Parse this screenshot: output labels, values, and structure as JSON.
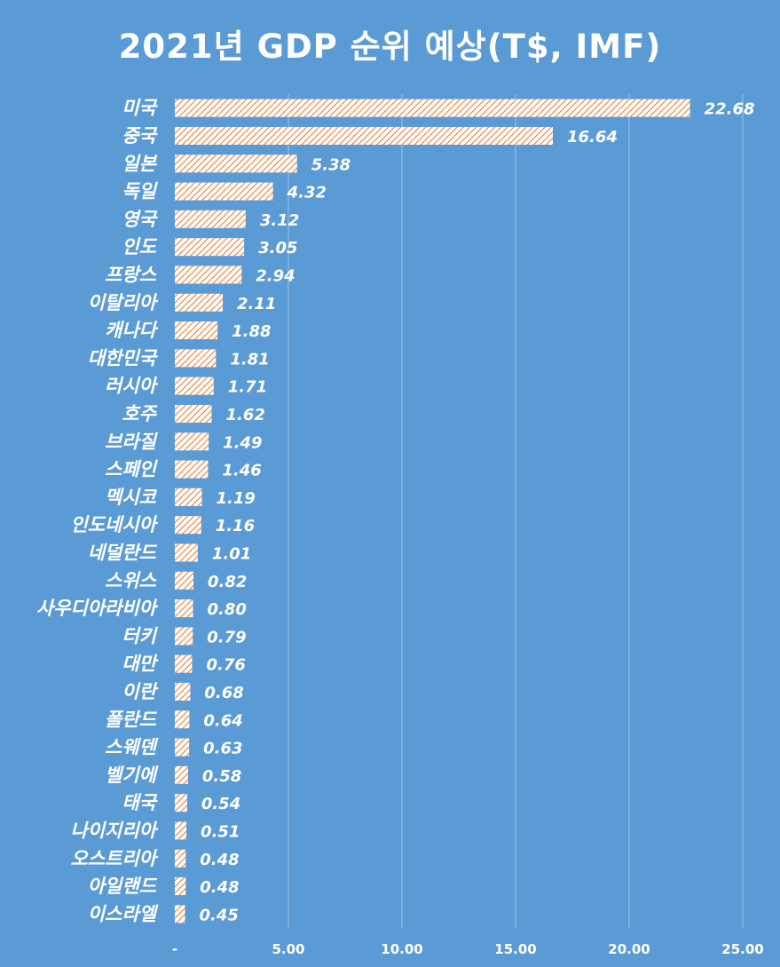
{
  "chart_data": {
    "type": "bar",
    "orientation": "horizontal",
    "title": "2021년 GDP 순위 예상(T$, IMF)",
    "categories": [
      "미국",
      "중국",
      "일본",
      "독일",
      "영국",
      "인도",
      "프랑스",
      "이탈리아",
      "캐나다",
      "대한민국",
      "러시아",
      "호주",
      "브라질",
      "스페인",
      "멕시코",
      "인도네시아",
      "네덜란드",
      "스위스",
      "사우디아라비아",
      "터키",
      "대만",
      "이란",
      "폴란드",
      "스웨덴",
      "벨기에",
      "태국",
      "나이지리아",
      "오스트리아",
      "아일랜드",
      "이스라엘"
    ],
    "values": [
      22.68,
      16.64,
      5.38,
      4.32,
      3.12,
      3.05,
      2.94,
      2.11,
      1.88,
      1.81,
      1.71,
      1.62,
      1.49,
      1.46,
      1.19,
      1.16,
      1.01,
      0.82,
      0.8,
      0.79,
      0.76,
      0.68,
      0.64,
      0.63,
      0.58,
      0.54,
      0.51,
      0.48,
      0.48,
      0.45
    ],
    "value_labels": [
      "22.68",
      "16.64",
      "5.38",
      "4.32",
      "3.12",
      "3.05",
      "2.94",
      "2.11",
      "1.88",
      "1.81",
      "1.71",
      "1.62",
      "1.49",
      "1.46",
      "1.19",
      "1.16",
      "1.01",
      "0.82",
      "0.80",
      "0.79",
      "0.76",
      "0.68",
      "0.64",
      "0.63",
      "0.58",
      "0.54",
      "0.51",
      "0.48",
      "0.48",
      "0.45"
    ],
    "xlim": [
      0,
      25
    ],
    "x_ticks": [
      0,
      5,
      10,
      15,
      20,
      25
    ],
    "x_tick_labels": [
      "-",
      "5.00",
      "10.00",
      "15.00",
      "20.00",
      "25.00"
    ],
    "grid": true,
    "legend": "none",
    "colors": {
      "background": "#5b9bd5",
      "bar_fill": "#ffffff",
      "bar_hatch": "#ed7d31",
      "gridline": "#9dc3e6",
      "text": "#ffffff"
    }
  }
}
